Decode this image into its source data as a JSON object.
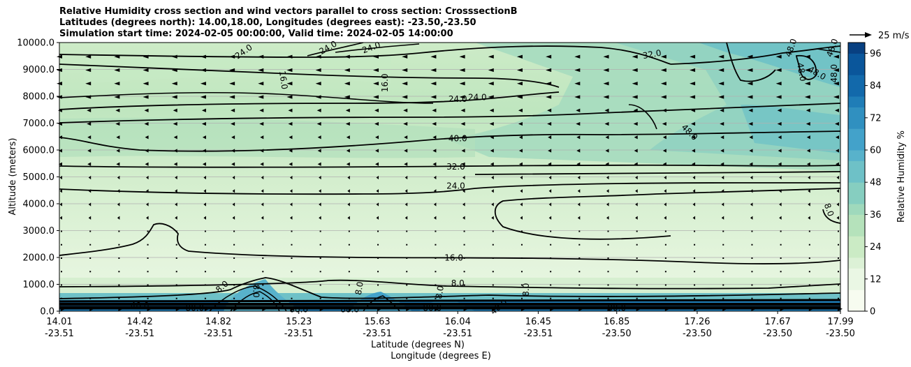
{
  "chart_data": {
    "type": "heatmap",
    "title_lines": [
      "Relative Humidity cross section and wind vectors parallel to cross section: CrosssectionB",
      "Latitudes (degrees north): 14.00,18.00, Longitudes (degrees east): -23.50,-23.50",
      "Simulation start time: 2024-02-05 00:00:00, Valid time: 2024-02-05 14:00:00"
    ],
    "xlabel": "Latitude (degrees N)",
    "xlabel2": "Longitude (degrees E)",
    "ylabel": "Altitude (meters)",
    "xlim": [
      14.01,
      17.99
    ],
    "ylim": [
      0,
      10000
    ],
    "grid": "horizontal",
    "x_ticks": [
      {
        "lat": "14.01",
        "lon": "-23.51",
        "value": 14.01
      },
      {
        "lat": "14.42",
        "lon": "-23.51",
        "value": 14.42
      },
      {
        "lat": "14.82",
        "lon": "-23.51",
        "value": 14.82
      },
      {
        "lat": "15.23",
        "lon": "-23.51",
        "value": 15.23
      },
      {
        "lat": "15.63",
        "lon": "-23.51",
        "value": 15.63
      },
      {
        "lat": "16.04",
        "lon": "-23.51",
        "value": 16.04
      },
      {
        "lat": "16.45",
        "lon": "-23.51",
        "value": 16.45
      },
      {
        "lat": "16.85",
        "lon": "-23.50",
        "value": 16.85
      },
      {
        "lat": "17.26",
        "lon": "-23.50",
        "value": 17.26
      },
      {
        "lat": "17.67",
        "lon": "-23.50",
        "value": 17.67
      },
      {
        "lat": "17.99",
        "lon": "-23.50",
        "value": 17.99
      }
    ],
    "y_ticks": [
      {
        "label": "0.0",
        "value": 0
      },
      {
        "label": "1000.0",
        "value": 1000
      },
      {
        "label": "2000.0",
        "value": 2000
      },
      {
        "label": "3000.0",
        "value": 3000
      },
      {
        "label": "4000.0",
        "value": 4000
      },
      {
        "label": "5000.0",
        "value": 5000
      },
      {
        "label": "6000.0",
        "value": 6000
      },
      {
        "label": "7000.0",
        "value": 7000
      },
      {
        "label": "8000.0",
        "value": 8000
      },
      {
        "label": "9000.0",
        "value": 9000
      },
      {
        "label": "10000.0",
        "value": 10000
      }
    ],
    "colorbar": {
      "label": "Relative Humidity %",
      "range": [
        0,
        100
      ],
      "ticks": [
        {
          "label": "0",
          "value": 0
        },
        {
          "label": "12",
          "value": 12
        },
        {
          "label": "24",
          "value": 24
        },
        {
          "label": "36",
          "value": 36
        },
        {
          "label": "48",
          "value": 48
        },
        {
          "label": "60",
          "value": 60
        },
        {
          "label": "72",
          "value": 72
        },
        {
          "label": "84",
          "value": 84
        },
        {
          "label": "96",
          "value": 96
        }
      ],
      "level_step": 4,
      "colors": [
        "#f7fcf0",
        "#eaf7e4",
        "#dcf1d6",
        "#cbebc5",
        "#b5e2bb",
        "#9fd9bc",
        "#86cec0",
        "#6ec1c7",
        "#58b2cb",
        "#43a2ca",
        "#3090c0",
        "#1f7db7",
        "#1269ab",
        "#0a569b",
        "#084081"
      ]
    },
    "quiver_key": {
      "label": "25 m/s",
      "value": 25
    },
    "contours": [
      {
        "level": 8.0,
        "altitude": 1000
      },
      {
        "level": 16.0,
        "altitude": 1900
      },
      {
        "level": 24.0,
        "altitude": 4600
      },
      {
        "level": 32.0,
        "altitude": 5300
      },
      {
        "level": 40.0,
        "altitude": 6500
      },
      {
        "level": 24.0,
        "altitude": 7900
      },
      {
        "level": 16.0,
        "altitude": 8800
      },
      {
        "level": 24.0,
        "altitude": 9700
      },
      {
        "level": 32.0,
        "altitude": 9300
      },
      {
        "level": 48.0,
        "altitude": 8800
      }
    ],
    "contour_labels": [
      {
        "text": "24.0",
        "x": 14.95,
        "y": 9650,
        "rot": -35
      },
      {
        "text": "24.0",
        "x": 15.38,
        "y": 9800,
        "rot": -30
      },
      {
        "text": "24.0",
        "x": 15.6,
        "y": 9800,
        "rot": -20
      },
      {
        "text": "16.0",
        "x": 15.15,
        "y": 8600,
        "rot": 82
      },
      {
        "text": "16.0",
        "x": 15.67,
        "y": 8500,
        "rot": -90
      },
      {
        "text": "24.0",
        "x": 16.04,
        "y": 7880,
        "rot": 0
      },
      {
        "text": "24.0",
        "x": 16.14,
        "y": 7950,
        "rot": 0
      },
      {
        "text": "40.0",
        "x": 16.04,
        "y": 6420,
        "rot": 0
      },
      {
        "text": "32.0",
        "x": 16.03,
        "y": 5360,
        "rot": 0
      },
      {
        "text": "24.0",
        "x": 16.03,
        "y": 4650,
        "rot": 0
      },
      {
        "text": "16.0",
        "x": 16.02,
        "y": 1980,
        "rot": 0
      },
      {
        "text": "8.0",
        "x": 16.04,
        "y": 1030,
        "rot": 0
      },
      {
        "text": "32.0",
        "x": 17.03,
        "y": 9550,
        "rot": -10
      },
      {
        "text": "48.0",
        "x": 17.74,
        "y": 9800,
        "rot": -70
      },
      {
        "text": "48.0",
        "x": 17.95,
        "y": 9800,
        "rot": -70
      },
      {
        "text": "48.0",
        "x": 17.79,
        "y": 8900,
        "rot": 80
      },
      {
        "text": "48.0",
        "x": 17.87,
        "y": 8850,
        "rot": 30
      },
      {
        "text": "48.0",
        "x": 17.96,
        "y": 8850,
        "rot": -90
      },
      {
        "text": "48.0",
        "x": 17.22,
        "y": 6650,
        "rot": 45
      },
      {
        "text": "8.0",
        "x": 17.93,
        "y": 3770,
        "rot": 70
      },
      {
        "text": "8.0",
        "x": 14.84,
        "y": 900,
        "rot": -40
      },
      {
        "text": "8.0",
        "x": 15.01,
        "y": 750,
        "rot": 90
      },
      {
        "text": "8.0",
        "x": 15.54,
        "y": 850,
        "rot": -80
      },
      {
        "text": "8.0",
        "x": 15.95,
        "y": 700,
        "rot": -80
      },
      {
        "text": "8.0",
        "x": 16.39,
        "y": 800,
        "rot": -90
      },
      {
        "text": "40.0",
        "x": 14.42,
        "y": 200,
        "rot": 0
      },
      {
        "text": "80.0",
        "x": 14.7,
        "y": 100,
        "rot": 0
      },
      {
        "text": "80.0",
        "x": 15.23,
        "y": 50,
        "rot": 0
      },
      {
        "text": "88.0",
        "x": 15.49,
        "y": 50,
        "rot": 0
      },
      {
        "text": "80.0",
        "x": 15.91,
        "y": 100,
        "rot": 0
      },
      {
        "text": "40.0",
        "x": 16.25,
        "y": 150,
        "rot": -40
      },
      {
        "text": "80.0",
        "x": 16.85,
        "y": 100,
        "rot": 0
      }
    ]
  }
}
